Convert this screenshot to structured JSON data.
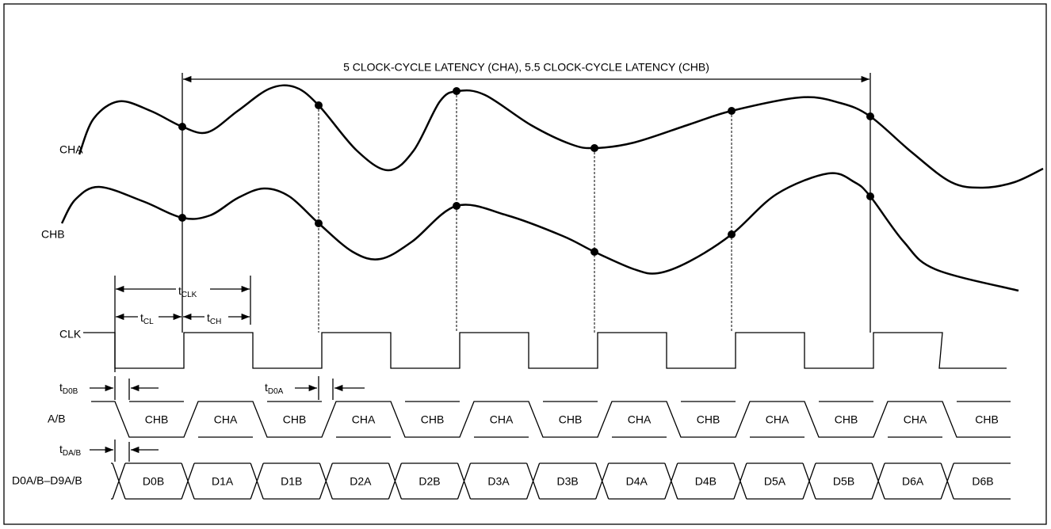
{
  "latency_label": "5 CLOCK-CYCLE LATENCY (CHA), 5.5 CLOCK-CYCLE LATENCY (CHB)",
  "signals": {
    "cha": "CHA",
    "chb": "CHB",
    "clk": "CLK",
    "ab": "A/B",
    "data": "D0A/B–D9A/B"
  },
  "timings": {
    "tclk": {
      "main": "t",
      "sub": "CLK"
    },
    "tcl": {
      "main": "t",
      "sub": "CL"
    },
    "tch": {
      "main": "t",
      "sub": "CH"
    },
    "td0b": {
      "main": "t",
      "sub": "D0B"
    },
    "td0a": {
      "main": "t",
      "sub": "D0A"
    },
    "tdab": {
      "main": "t",
      "sub": "DA/B"
    }
  },
  "ab_segments": [
    "CHB",
    "CHA",
    "CHB",
    "CHA",
    "CHB",
    "CHA",
    "CHB",
    "CHA",
    "CHB",
    "CHA",
    "CHB",
    "CHA",
    "CHB"
  ],
  "data_segments": [
    "D0B",
    "D1A",
    "D1B",
    "D2A",
    "D2B",
    "D3A",
    "D3B",
    "D4A",
    "D4B",
    "D5A",
    "D5B",
    "D6A",
    "D6B"
  ]
}
